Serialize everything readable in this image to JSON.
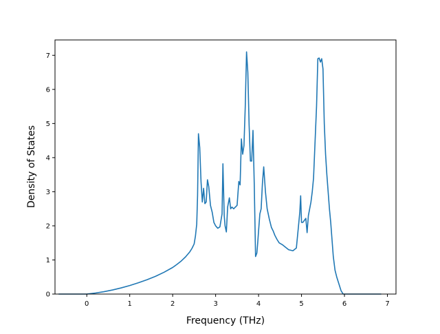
{
  "chart_data": {
    "type": "line",
    "title": "",
    "xlabel": "Frequency (THz)",
    "ylabel": "Density of States",
    "xlim": [
      -0.74,
      7.2
    ],
    "ylim": [
      0,
      7.45
    ],
    "xticks": [
      0,
      1,
      2,
      3,
      4,
      5,
      6,
      7
    ],
    "yticks": [
      0,
      1,
      2,
      3,
      4,
      5,
      6,
      7
    ],
    "grid": false,
    "colors": {
      "line": "#1f77b4",
      "axis": "#000000",
      "background": "#ffffff"
    },
    "series": [
      {
        "x": [
          -0.65,
          0.0,
          0.2,
          0.4,
          0.6,
          0.8,
          1.0,
          1.2,
          1.4,
          1.6,
          1.8,
          2.0,
          2.1,
          2.2,
          2.3,
          2.4,
          2.45,
          2.5,
          2.53,
          2.56,
          2.58,
          2.6,
          2.63,
          2.66,
          2.69,
          2.72,
          2.75,
          2.78,
          2.81,
          2.84,
          2.88,
          2.92,
          2.96,
          3.0,
          3.05,
          3.1,
          3.15,
          3.17,
          3.2,
          3.22,
          3.25,
          3.28,
          3.32,
          3.35,
          3.38,
          3.42,
          3.46,
          3.5,
          3.54,
          3.57,
          3.6,
          3.63,
          3.66,
          3.69,
          3.72,
          3.75,
          3.78,
          3.81,
          3.84,
          3.87,
          3.9,
          3.93,
          3.96,
          3.98,
          4.0,
          4.03,
          4.06,
          4.09,
          4.12,
          4.16,
          4.2,
          4.25,
          4.3,
          4.34,
          4.38,
          4.43,
          4.48,
          4.55,
          4.62,
          4.7,
          4.8,
          4.88,
          4.93,
          4.96,
          4.98,
          5.0,
          5.03,
          5.06,
          5.1,
          5.13,
          5.16,
          5.19,
          5.22,
          5.25,
          5.28,
          5.31,
          5.35,
          5.38,
          5.41,
          5.44,
          5.47,
          5.5,
          5.53,
          5.56,
          5.59,
          5.62,
          5.65,
          5.68,
          5.71,
          5.74,
          5.78,
          5.82,
          5.87,
          5.92,
          5.97,
          6.02,
          6.07,
          6.12,
          6.17,
          6.2,
          6.23,
          6.3,
          6.5,
          6.85
        ],
        "y": [
          0.0,
          0.0,
          0.03,
          0.07,
          0.12,
          0.18,
          0.25,
          0.33,
          0.42,
          0.52,
          0.64,
          0.78,
          0.87,
          0.97,
          1.09,
          1.24,
          1.34,
          1.47,
          1.7,
          2.05,
          2.9,
          4.7,
          4.3,
          3.3,
          2.7,
          3.1,
          2.65,
          2.7,
          3.35,
          3.15,
          2.6,
          2.4,
          2.1,
          2.0,
          1.93,
          1.97,
          2.35,
          3.82,
          2.3,
          2.0,
          1.82,
          2.55,
          2.82,
          2.5,
          2.55,
          2.5,
          2.55,
          2.6,
          3.3,
          3.2,
          4.55,
          4.1,
          4.35,
          5.5,
          7.1,
          6.5,
          4.95,
          3.9,
          3.9,
          4.8,
          3.2,
          1.1,
          1.2,
          1.5,
          1.85,
          2.35,
          2.5,
          3.25,
          3.73,
          3.0,
          2.5,
          2.2,
          1.95,
          1.85,
          1.72,
          1.6,
          1.5,
          1.45,
          1.38,
          1.3,
          1.27,
          1.35,
          2.0,
          2.4,
          2.88,
          2.1,
          2.1,
          2.15,
          2.22,
          1.8,
          2.3,
          2.5,
          2.7,
          3.0,
          3.4,
          4.3,
          5.5,
          6.9,
          6.92,
          6.8,
          6.9,
          6.6,
          5.0,
          4.1,
          3.5,
          3.0,
          2.5,
          2.1,
          1.6,
          1.1,
          0.7,
          0.5,
          0.3,
          0.1,
          0.0,
          0.0,
          0.0,
          0.0,
          0.0,
          0.0,
          0.0,
          0.0,
          0.0,
          0.0
        ]
      }
    ]
  }
}
